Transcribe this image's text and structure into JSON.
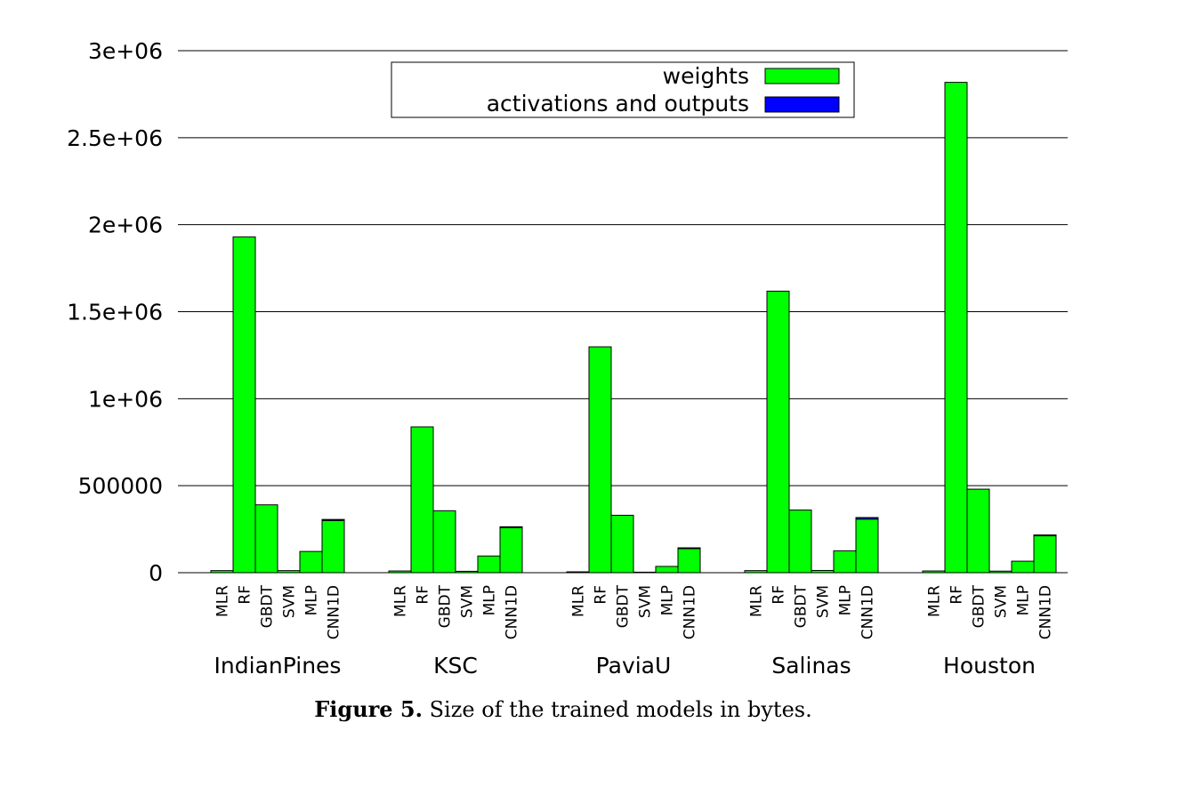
{
  "caption": {
    "label": "Figure 5.",
    "text": "Size of the trained models in bytes."
  },
  "colors": {
    "weights": "#00ff00",
    "activations": "#0000ff",
    "grid": "#000000"
  },
  "chart_data": {
    "type": "bar",
    "groups": [
      "IndianPines",
      "KSC",
      "PaviaU",
      "Salinas",
      "Houston"
    ],
    "models": [
      "MLR",
      "RF",
      "GBDT",
      "SVM",
      "MLP",
      "CNN1D"
    ],
    "y_ticks": [
      "0",
      "500000",
      "1e+06",
      "1.5e+06",
      "2e+06",
      "2.5e+06",
      "3e+06"
    ],
    "ylim": [
      0,
      3000000
    ],
    "grid": true,
    "legend_position": "top-center",
    "stacked": true,
    "series": [
      {
        "name": "weights",
        "values": [
          [
            12000,
            1930000,
            390000,
            12000,
            122000,
            300000
          ],
          [
            10000,
            838000,
            356000,
            8000,
            96000,
            260000
          ],
          [
            5000,
            1298000,
            330000,
            3000,
            36000,
            140000
          ],
          [
            12000,
            1618000,
            360000,
            13000,
            126000,
            308000
          ],
          [
            10000,
            2818000,
            480000,
            9000,
            66000,
            214000
          ]
        ]
      },
      {
        "name": "activations and outputs",
        "values": [
          [
            0,
            0,
            0,
            0,
            0,
            6000
          ],
          [
            0,
            0,
            0,
            0,
            0,
            4000
          ],
          [
            0,
            0,
            0,
            0,
            0,
            3000
          ],
          [
            0,
            0,
            0,
            0,
            0,
            9000
          ],
          [
            0,
            0,
            0,
            0,
            0,
            3000
          ]
        ]
      }
    ]
  }
}
